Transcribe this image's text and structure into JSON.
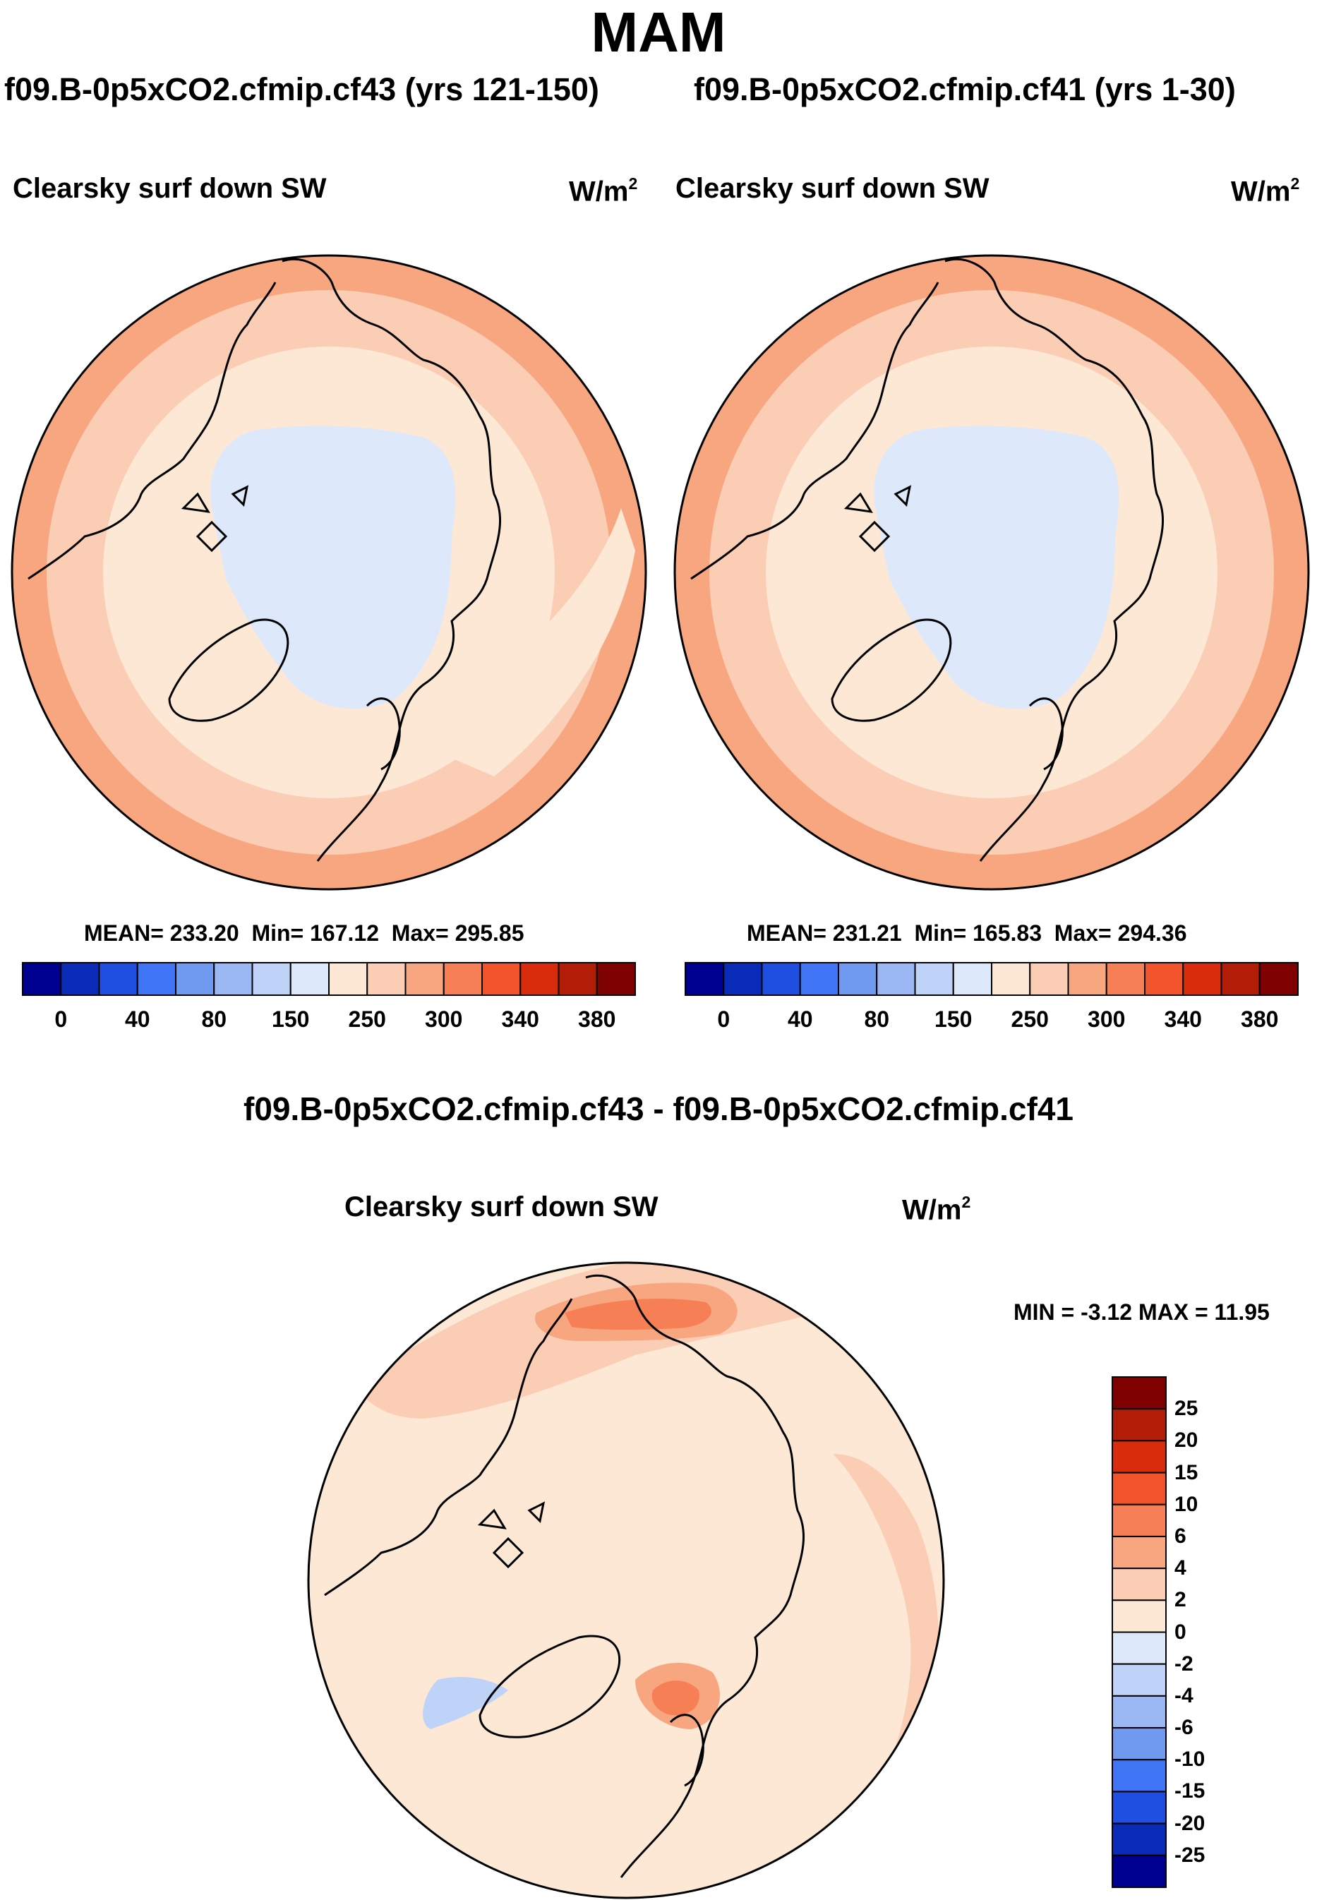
{
  "title": "MAM",
  "panels": [
    {
      "case": "f09.B-0p5xCO2.cfmip.cf43 (yrs 121-150)",
      "variable": "Clearsky surf down SW",
      "units_base": "W/m",
      "units_exp": "2",
      "mean_label": "MEAN=",
      "mean": "233.20",
      "min_label": "Min=",
      "min": "167.12",
      "max_label": "Max=",
      "max": "295.85"
    },
    {
      "case": "f09.B-0p5xCO2.cfmip.cf41 (yrs 1-30)",
      "variable": "Clearsky surf down SW",
      "units_base": "W/m",
      "units_exp": "2",
      "mean_label": "MEAN=",
      "mean": "231.21",
      "min_label": "Min=",
      "min": "165.83",
      "max_label": "Max=",
      "max": "294.36"
    }
  ],
  "abs_colorbar": {
    "colors": [
      "#000090",
      "#0a2ab8",
      "#1f4fe0",
      "#3f75f5",
      "#7099f0",
      "#9bb8f5",
      "#bfd3f8",
      "#dde9fb",
      "#fde8d6",
      "#fbcdb4",
      "#f8a680",
      "#f77f55",
      "#f1542b",
      "#d92c0c",
      "#b11d07",
      "#7f0000"
    ],
    "labels": [
      "0",
      "40",
      "80",
      "150",
      "250",
      "300",
      "340",
      "380"
    ]
  },
  "diff": {
    "title": "f09.B-0p5xCO2.cfmip.cf43 - f09.B-0p5xCO2.cfmip.cf41",
    "variable": "Clearsky surf down SW",
    "units_base": "W/m",
    "units_exp": "2",
    "minmax": "MIN =  -3.12 MAX =  11.95",
    "colors": [
      "#7f0000",
      "#b11d07",
      "#d92c0c",
      "#f1542b",
      "#f77f55",
      "#f8a680",
      "#fbcdb4",
      "#fde8d6",
      "#dde9fb",
      "#bfd3f8",
      "#9bb8f5",
      "#7099f0",
      "#3f75f5",
      "#1f4fe0",
      "#0a2ab8",
      "#000090"
    ],
    "labels": [
      "25",
      "20",
      "15",
      "10",
      "6",
      "4",
      "2",
      "0",
      "-2",
      "-4",
      "-6",
      "-10",
      "-15",
      "-20",
      "-25"
    ]
  },
  "chart_data": [
    {
      "type": "heatmap",
      "projection": "north-polar-stereographic",
      "title": "f09.B-0p5xCO2.cfmip.cf43 (yrs 121-150)",
      "variable": "Clearsky surf down SW",
      "units": "W/m2",
      "mean": 233.2,
      "min": 167.12,
      "max": 295.85,
      "levels": [
        0,
        20,
        40,
        60,
        80,
        100,
        150,
        200,
        250,
        275,
        300,
        320,
        340,
        360,
        380
      ]
    },
    {
      "type": "heatmap",
      "projection": "north-polar-stereographic",
      "title": "f09.B-0p5xCO2.cfmip.cf41 (yrs 1-30)",
      "variable": "Clearsky surf down SW",
      "units": "W/m2",
      "mean": 231.21,
      "min": 165.83,
      "max": 294.36,
      "levels": [
        0,
        20,
        40,
        60,
        80,
        100,
        150,
        200,
        250,
        275,
        300,
        320,
        340,
        360,
        380
      ]
    },
    {
      "type": "heatmap",
      "projection": "north-polar-stereographic",
      "title": "f09.B-0p5xCO2.cfmip.cf43 - f09.B-0p5xCO2.cfmip.cf41",
      "variable": "Clearsky surf down SW",
      "units": "W/m2",
      "min": -3.12,
      "max": 11.95,
      "levels": [
        -25,
        -20,
        -15,
        -10,
        -6,
        -4,
        -2,
        0,
        2,
        4,
        6,
        10,
        15,
        20,
        25
      ]
    }
  ]
}
